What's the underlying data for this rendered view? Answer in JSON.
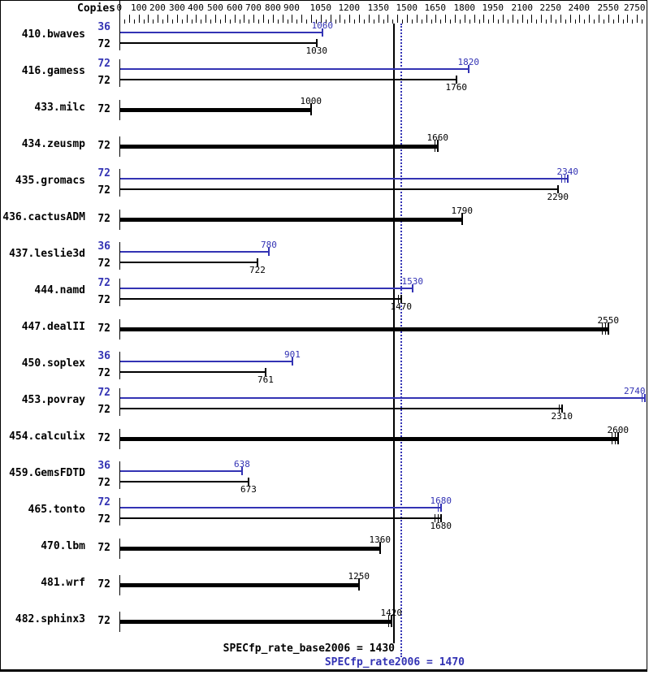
{
  "chart_data": {
    "type": "bar",
    "orientation": "horizontal",
    "copies_header": "Copies",
    "grid": false,
    "legend_position": "none",
    "xlim": [
      0,
      2757
    ],
    "x_tick_labels": [
      0,
      100,
      200,
      300,
      400,
      500,
      600,
      700,
      800,
      900,
      1050,
      1200,
      1350,
      1500,
      1650,
      1800,
      1950,
      2100,
      2250,
      2400,
      2550,
      2750
    ],
    "minor_tick_step": 25,
    "major_tick_step": 50,
    "colors": {
      "peak": "#3333b4",
      "base": "#000000"
    },
    "benchmarks": [
      {
        "name": "410.bwaves",
        "bars": [
          {
            "series": "peak",
            "copies": 36,
            "value": 1060,
            "end_ticks": 1
          },
          {
            "series": "base",
            "copies": 72,
            "value": 1030,
            "end_ticks": 1
          }
        ]
      },
      {
        "name": "416.gamess",
        "bars": [
          {
            "series": "peak",
            "copies": 72,
            "value": 1820,
            "end_ticks": 1
          },
          {
            "series": "base",
            "copies": 72,
            "value": 1760,
            "end_ticks": 1
          }
        ]
      },
      {
        "name": "433.milc",
        "bars": [
          {
            "series": "base",
            "copies": 72,
            "value": 1000,
            "end_ticks": 1,
            "thick": true
          }
        ]
      },
      {
        "name": "434.zeusmp",
        "bars": [
          {
            "series": "base",
            "copies": 72,
            "value": 1660,
            "end_ticks": 2,
            "thick": true
          }
        ]
      },
      {
        "name": "435.gromacs",
        "bars": [
          {
            "series": "peak",
            "copies": 72,
            "value": 2340,
            "end_ticks": 3
          },
          {
            "series": "base",
            "copies": 72,
            "value": 2290,
            "end_ticks": 1
          }
        ]
      },
      {
        "name": "436.cactusADM",
        "bars": [
          {
            "series": "base",
            "copies": 72,
            "value": 1790,
            "end_ticks": 1,
            "thick": true
          }
        ]
      },
      {
        "name": "437.leslie3d",
        "bars": [
          {
            "series": "peak",
            "copies": 36,
            "value": 780,
            "end_ticks": 1
          },
          {
            "series": "base",
            "copies": 72,
            "value": 722,
            "end_ticks": 1
          }
        ]
      },
      {
        "name": "444.namd",
        "bars": [
          {
            "series": "peak",
            "copies": 72,
            "value": 1530,
            "end_ticks": 1
          },
          {
            "series": "base",
            "copies": 72,
            "value": 1470,
            "end_ticks": 2
          }
        ]
      },
      {
        "name": "447.dealII",
        "bars": [
          {
            "series": "base",
            "copies": 72,
            "value": 2550,
            "end_ticks": 3,
            "thick": true
          }
        ]
      },
      {
        "name": "450.soplex",
        "bars": [
          {
            "series": "peak",
            "copies": 36,
            "value": 901,
            "end_ticks": 1
          },
          {
            "series": "base",
            "copies": 72,
            "value": 761,
            "end_ticks": 1
          }
        ]
      },
      {
        "name": "453.povray",
        "bars": [
          {
            "series": "peak",
            "copies": 72,
            "value": 2740,
            "end_ticks": 2
          },
          {
            "series": "base",
            "copies": 72,
            "value": 2310,
            "end_ticks": 2
          }
        ]
      },
      {
        "name": "454.calculix",
        "bars": [
          {
            "series": "base",
            "copies": 72,
            "value": 2600,
            "end_ticks": 3,
            "thick": true
          }
        ]
      },
      {
        "name": "459.GemsFDTD",
        "bars": [
          {
            "series": "peak",
            "copies": 36,
            "value": 638,
            "end_ticks": 1
          },
          {
            "series": "base",
            "copies": 72,
            "value": 673,
            "end_ticks": 1
          }
        ]
      },
      {
        "name": "465.tonto",
        "bars": [
          {
            "series": "peak",
            "copies": 72,
            "value": 1680,
            "end_ticks": 2
          },
          {
            "series": "base",
            "copies": 72,
            "value": 1680,
            "end_ticks": 3
          }
        ]
      },
      {
        "name": "470.lbm",
        "bars": [
          {
            "series": "base",
            "copies": 72,
            "value": 1360,
            "end_ticks": 1,
            "thick": true
          }
        ]
      },
      {
        "name": "481.wrf",
        "bars": [
          {
            "series": "base",
            "copies": 72,
            "value": 1250,
            "end_ticks": 1,
            "thick": true
          }
        ]
      },
      {
        "name": "482.sphinx3",
        "bars": [
          {
            "series": "base",
            "copies": 72,
            "value": 1420,
            "end_ticks": 2,
            "thick": true
          }
        ]
      }
    ],
    "reference_lines": [
      {
        "series": "base",
        "value": 1430,
        "style": "solid",
        "color": "#000000"
      },
      {
        "series": "peak",
        "value": 1470,
        "style": "dotted",
        "color": "#3333b4"
      }
    ],
    "summary": {
      "base_text": "SPECfp_rate_base2006 = 1430",
      "base_value": 1430,
      "peak_text": "SPECfp_rate2006 = 1470",
      "peak_value": 1470
    }
  }
}
